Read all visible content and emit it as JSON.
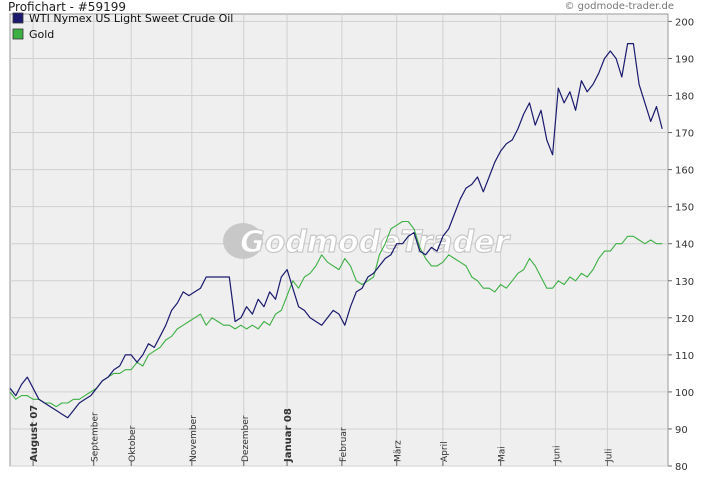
{
  "header": {
    "title": "Profichart - #59199",
    "source": "© godmode-trader.de"
  },
  "watermark": "GodmodeTrader",
  "colors": {
    "oil": "#1a1a6e",
    "gold": "#3cb043",
    "grid": "#d0d0d0",
    "plot_bg": "#efefef"
  },
  "chart_data": {
    "type": "line",
    "title": "Profichart - #59199",
    "ylim": [
      80,
      202
    ],
    "yticks": [
      80,
      90,
      100,
      110,
      120,
      130,
      140,
      150,
      160,
      170,
      180,
      190,
      200
    ],
    "ytick_labels": [
      "80",
      "90",
      "100",
      "110",
      "120",
      "130",
      "140",
      "150",
      "160",
      "170",
      "180",
      "190",
      "200"
    ],
    "xlim": [
      0,
      228
    ],
    "month_ticks": [
      {
        "label": "August 07",
        "x": 8,
        "bold": true
      },
      {
        "label": "September",
        "x": 29,
        "bold": false
      },
      {
        "label": "Oktober",
        "x": 42,
        "bold": false
      },
      {
        "label": "November",
        "x": 63,
        "bold": false
      },
      {
        "label": "Dezember",
        "x": 81,
        "bold": false
      },
      {
        "label": "Januar 08",
        "x": 96,
        "bold": true
      },
      {
        "label": "Februar",
        "x": 115,
        "bold": false
      },
      {
        "label": "März",
        "x": 134,
        "bold": false
      },
      {
        "label": "April",
        "x": 150,
        "bold": false
      },
      {
        "label": "Mai",
        "x": 170,
        "bold": false
      },
      {
        "label": "Juni",
        "x": 189,
        "bold": false
      },
      {
        "label": "Juli",
        "x": 207,
        "bold": false
      }
    ],
    "series": [
      {
        "name": "WTI Nymex US Light Sweet Crude Oil",
        "color": "#1a1a6e",
        "points": [
          [
            0,
            101
          ],
          [
            2,
            99
          ],
          [
            4,
            102
          ],
          [
            6,
            104
          ],
          [
            8,
            101
          ],
          [
            10,
            98
          ],
          [
            12,
            97
          ],
          [
            14,
            96
          ],
          [
            16,
            95
          ],
          [
            18,
            94
          ],
          [
            20,
            93
          ],
          [
            22,
            95
          ],
          [
            24,
            97
          ],
          [
            26,
            98
          ],
          [
            28,
            99
          ],
          [
            30,
            101
          ],
          [
            32,
            103
          ],
          [
            34,
            104
          ],
          [
            36,
            106
          ],
          [
            38,
            107
          ],
          [
            40,
            110
          ],
          [
            42,
            110
          ],
          [
            44,
            108
          ],
          [
            46,
            110
          ],
          [
            48,
            113
          ],
          [
            50,
            112
          ],
          [
            52,
            115
          ],
          [
            54,
            118
          ],
          [
            56,
            122
          ],
          [
            58,
            124
          ],
          [
            60,
            127
          ],
          [
            62,
            126
          ],
          [
            64,
            127
          ],
          [
            66,
            128
          ],
          [
            68,
            131
          ],
          [
            70,
            131
          ],
          [
            72,
            131
          ],
          [
            74,
            131
          ],
          [
            76,
            131
          ],
          [
            78,
            119
          ],
          [
            80,
            120
          ],
          [
            82,
            123
          ],
          [
            84,
            121
          ],
          [
            86,
            125
          ],
          [
            88,
            123
          ],
          [
            90,
            127
          ],
          [
            92,
            125
          ],
          [
            94,
            131
          ],
          [
            96,
            133
          ],
          [
            98,
            128
          ],
          [
            100,
            123
          ],
          [
            102,
            122
          ],
          [
            104,
            120
          ],
          [
            106,
            119
          ],
          [
            108,
            118
          ],
          [
            110,
            120
          ],
          [
            112,
            122
          ],
          [
            114,
            121
          ],
          [
            116,
            118
          ],
          [
            118,
            123
          ],
          [
            120,
            127
          ],
          [
            122,
            128
          ],
          [
            124,
            131
          ],
          [
            126,
            132
          ],
          [
            128,
            134
          ],
          [
            130,
            136
          ],
          [
            132,
            137
          ],
          [
            134,
            140
          ],
          [
            136,
            140
          ],
          [
            138,
            142
          ],
          [
            140,
            143
          ],
          [
            142,
            138
          ],
          [
            144,
            137
          ],
          [
            146,
            139
          ],
          [
            148,
            138
          ],
          [
            150,
            142
          ],
          [
            152,
            144
          ],
          [
            154,
            148
          ],
          [
            156,
            152
          ],
          [
            158,
            155
          ],
          [
            160,
            156
          ],
          [
            162,
            158
          ],
          [
            164,
            154
          ],
          [
            166,
            158
          ],
          [
            168,
            162
          ],
          [
            170,
            165
          ],
          [
            172,
            167
          ],
          [
            174,
            168
          ],
          [
            176,
            171
          ],
          [
            178,
            175
          ],
          [
            180,
            178
          ],
          [
            182,
            172
          ],
          [
            184,
            176
          ],
          [
            186,
            168
          ],
          [
            188,
            164
          ],
          [
            190,
            182
          ],
          [
            192,
            178
          ],
          [
            194,
            181
          ],
          [
            196,
            176
          ],
          [
            198,
            184
          ],
          [
            200,
            181
          ],
          [
            202,
            183
          ],
          [
            204,
            186
          ],
          [
            206,
            190
          ],
          [
            208,
            192
          ],
          [
            210,
            190
          ],
          [
            212,
            185
          ],
          [
            214,
            194
          ],
          [
            216,
            194
          ],
          [
            218,
            183
          ],
          [
            220,
            178
          ],
          [
            222,
            173
          ],
          [
            224,
            177
          ],
          [
            226,
            171
          ]
        ]
      },
      {
        "name": "Gold",
        "color": "#3cb043",
        "points": [
          [
            0,
            100
          ],
          [
            2,
            98
          ],
          [
            4,
            99
          ],
          [
            6,
            99
          ],
          [
            8,
            98
          ],
          [
            10,
            98
          ],
          [
            12,
            97
          ],
          [
            14,
            97
          ],
          [
            16,
            96
          ],
          [
            18,
            97
          ],
          [
            20,
            97
          ],
          [
            22,
            98
          ],
          [
            24,
            98
          ],
          [
            26,
            99
          ],
          [
            28,
            100
          ],
          [
            30,
            101
          ],
          [
            32,
            103
          ],
          [
            34,
            104
          ],
          [
            36,
            105
          ],
          [
            38,
            105
          ],
          [
            40,
            106
          ],
          [
            42,
            106
          ],
          [
            44,
            108
          ],
          [
            46,
            107
          ],
          [
            48,
            110
          ],
          [
            50,
            111
          ],
          [
            52,
            112
          ],
          [
            54,
            114
          ],
          [
            56,
            115
          ],
          [
            58,
            117
          ],
          [
            60,
            118
          ],
          [
            62,
            119
          ],
          [
            64,
            120
          ],
          [
            66,
            121
          ],
          [
            68,
            118
          ],
          [
            70,
            120
          ],
          [
            72,
            119
          ],
          [
            74,
            118
          ],
          [
            76,
            118
          ],
          [
            78,
            117
          ],
          [
            80,
            118
          ],
          [
            82,
            117
          ],
          [
            84,
            118
          ],
          [
            86,
            117
          ],
          [
            88,
            119
          ],
          [
            90,
            118
          ],
          [
            92,
            121
          ],
          [
            94,
            122
          ],
          [
            96,
            126
          ],
          [
            98,
            130
          ],
          [
            100,
            128
          ],
          [
            102,
            131
          ],
          [
            104,
            132
          ],
          [
            106,
            134
          ],
          [
            108,
            137
          ],
          [
            110,
            135
          ],
          [
            112,
            134
          ],
          [
            114,
            133
          ],
          [
            116,
            136
          ],
          [
            118,
            134
          ],
          [
            120,
            130
          ],
          [
            122,
            129
          ],
          [
            124,
            130
          ],
          [
            126,
            131
          ],
          [
            128,
            137
          ],
          [
            130,
            140
          ],
          [
            132,
            144
          ],
          [
            134,
            145
          ],
          [
            136,
            146
          ],
          [
            138,
            146
          ],
          [
            140,
            144
          ],
          [
            142,
            139
          ],
          [
            144,
            136
          ],
          [
            146,
            134
          ],
          [
            148,
            134
          ],
          [
            150,
            135
          ],
          [
            152,
            137
          ],
          [
            154,
            136
          ],
          [
            156,
            135
          ],
          [
            158,
            134
          ],
          [
            160,
            131
          ],
          [
            162,
            130
          ],
          [
            164,
            128
          ],
          [
            166,
            128
          ],
          [
            168,
            127
          ],
          [
            170,
            129
          ],
          [
            172,
            128
          ],
          [
            174,
            130
          ],
          [
            176,
            132
          ],
          [
            178,
            133
          ],
          [
            180,
            136
          ],
          [
            182,
            134
          ],
          [
            184,
            131
          ],
          [
            186,
            128
          ],
          [
            188,
            128
          ],
          [
            190,
            130
          ],
          [
            192,
            129
          ],
          [
            194,
            131
          ],
          [
            196,
            130
          ],
          [
            198,
            132
          ],
          [
            200,
            131
          ],
          [
            202,
            133
          ],
          [
            204,
            136
          ],
          [
            206,
            138
          ],
          [
            208,
            138
          ],
          [
            210,
            140
          ],
          [
            212,
            140
          ],
          [
            214,
            142
          ],
          [
            216,
            142
          ],
          [
            218,
            141
          ],
          [
            220,
            140
          ],
          [
            222,
            141
          ],
          [
            224,
            140
          ],
          [
            226,
            140
          ]
        ]
      }
    ],
    "legend": [
      {
        "label": "WTI Nymex US Light Sweet Crude Oil",
        "color": "#1a1a6e"
      },
      {
        "label": "Gold",
        "color": "#3cb043"
      }
    ],
    "legend_position": "top-left",
    "grid": true
  }
}
